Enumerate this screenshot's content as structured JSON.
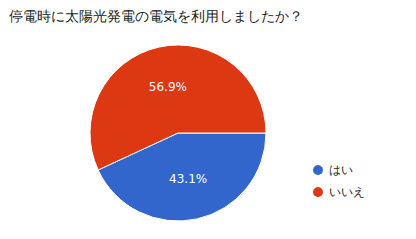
{
  "chart_data": {
    "type": "pie",
    "title": "停電時に太陽光発電の電気を利用しましたか？",
    "categories": [
      "はい",
      "いいえ"
    ],
    "values": [
      43.1,
      56.9
    ],
    "value_labels": [
      "43.1%",
      "56.9%"
    ],
    "colors": [
      "#3366cc",
      "#dc3912"
    ],
    "data_labels": true,
    "legend": "right"
  }
}
